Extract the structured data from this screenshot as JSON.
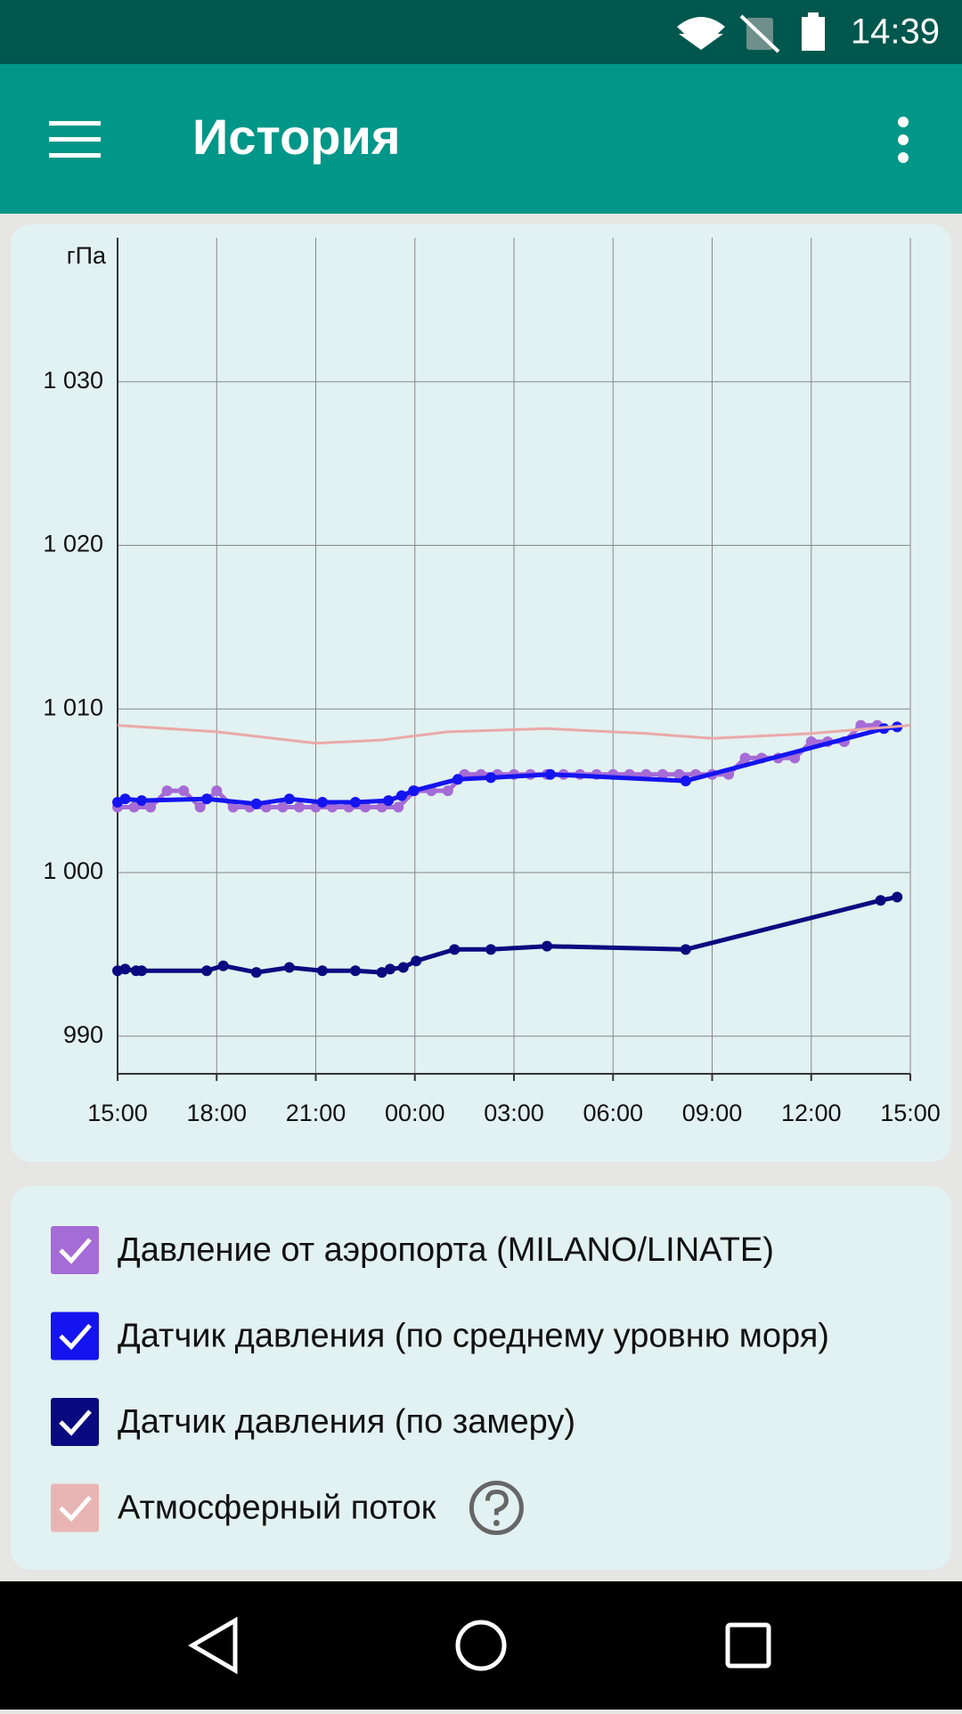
{
  "status_bar": {
    "time": "14:39"
  },
  "app_bar": {
    "title": "История"
  },
  "chart_data": {
    "type": "line",
    "y_label": "гПа",
    "xlim": [
      0,
      24
    ],
    "xticks": [
      {
        "value": 0,
        "label": "15:00"
      },
      {
        "value": 3,
        "label": "18:00"
      },
      {
        "value": 6,
        "label": "21:00"
      },
      {
        "value": 9,
        "label": "00:00"
      },
      {
        "value": 12,
        "label": "03:00"
      },
      {
        "value": 15,
        "label": "06:00"
      },
      {
        "value": 18,
        "label": "09:00"
      },
      {
        "value": 21,
        "label": "12:00"
      },
      {
        "value": 24,
        "label": "15:00"
      }
    ],
    "ylim": [
      987.7,
      1038.8
    ],
    "yticks": [
      990,
      {
        "value": 1000,
        "label": "1 000"
      },
      {
        "value": 1010,
        "label": "1 010"
      },
      {
        "value": 1020,
        "label": "1 020"
      },
      {
        "value": 1030,
        "label": "1 030"
      }
    ],
    "grid": true,
    "series": [
      {
        "name": "Давление от аэропорта (MILANO/LINATE)",
        "color": "#a56bd6",
        "markers": true,
        "x": [
          0,
          0.5,
          1,
          1.5,
          2,
          2.5,
          3,
          3.5,
          4,
          4.5,
          5,
          5.5,
          6,
          6.5,
          7,
          7.5,
          8,
          8.5,
          9,
          9.5,
          10,
          10.5,
          11,
          11.5,
          12,
          12.5,
          13,
          13.5,
          14,
          14.5,
          15,
          15.5,
          16,
          16.5,
          17,
          17.5,
          18,
          18.5,
          19,
          19.5,
          20,
          20.5,
          21,
          21.5,
          22,
          22.5,
          23
        ],
        "values": [
          1004,
          1004,
          1004,
          1005,
          1005,
          1004,
          1005,
          1004,
          1004,
          1004,
          1004,
          1004,
          1004,
          1004,
          1004,
          1004,
          1004,
          1004,
          1005,
          1005,
          1005,
          1006,
          1006,
          1006,
          1006,
          1006,
          1006,
          1006,
          1006,
          1006,
          1006,
          1006,
          1006,
          1006,
          1006,
          1006,
          1006,
          1006,
          1007,
          1007,
          1007,
          1007,
          1008,
          1008,
          1008,
          1009,
          1009
        ]
      },
      {
        "name": "Датчик давления (по среднему уровню моря)",
        "color": "#1414f0",
        "markers": true,
        "x": [
          0,
          0.23,
          0.73,
          2.7,
          4.2,
          5.2,
          6.2,
          7.2,
          8.2,
          8.6,
          8.96,
          10.3,
          11.3,
          13.1,
          17.2,
          23.2,
          23.6
        ],
        "values": [
          1004.3,
          1004.5,
          1004.4,
          1004.5,
          1004.2,
          1004.5,
          1004.3,
          1004.3,
          1004.4,
          1004.7,
          1005,
          1005.7,
          1005.8,
          1006,
          1005.6,
          1008.8,
          1008.9
        ]
      },
      {
        "name": "Датчик давления (по замеру)",
        "color": "#0a0a80",
        "markers": true,
        "x": [
          0,
          0.23,
          0.56,
          0.73,
          2.7,
          3.2,
          4.2,
          5.2,
          6.2,
          7.2,
          8.0,
          8.25,
          8.65,
          9.04,
          10.2,
          11.3,
          13.0,
          17.2,
          23.1,
          23.6
        ],
        "values": [
          994,
          994.1,
          994,
          994,
          994,
          994.3,
          993.9,
          994.2,
          994,
          994,
          993.9,
          994.1,
          994.2,
          994.6,
          995.3,
          995.3,
          995.5,
          995.3,
          998.3,
          998.5
        ]
      },
      {
        "name": "Атмосферный поток",
        "color": "#eaa9a9",
        "markers": false,
        "x": [
          0,
          3,
          6,
          8,
          10,
          13,
          16,
          18,
          21,
          24
        ],
        "values": [
          1009,
          1008.6,
          1007.9,
          1008.1,
          1008.6,
          1008.8,
          1008.5,
          1008.2,
          1008.5,
          1009
        ]
      }
    ]
  }
}
